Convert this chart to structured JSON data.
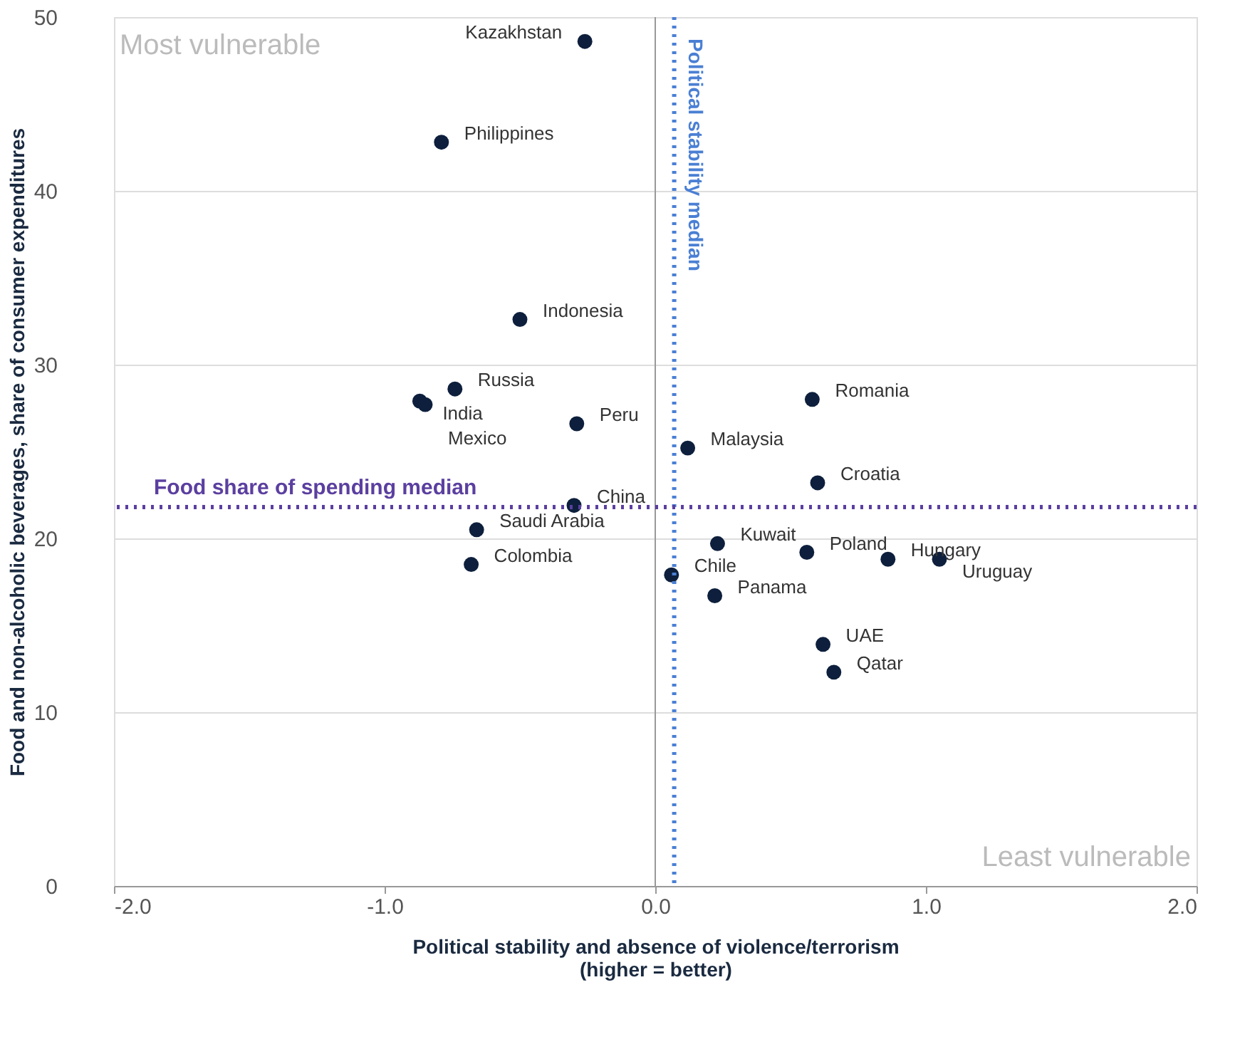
{
  "chart_data": {
    "type": "scatter",
    "xlabel": "Political stability and absence of violence/terrorism\n(higher = better)",
    "ylabel": "Food and non-alcoholic beverages, share of consumer expenditures",
    "x": [
      -0.26,
      -0.79,
      -0.5,
      -0.74,
      -0.87,
      -0.85,
      -0.29,
      0.12,
      0.58,
      0.6,
      -0.3,
      -0.66,
      -0.68,
      0.23,
      0.56,
      0.86,
      1.05,
      0.06,
      0.22,
      0.62,
      0.66
    ],
    "series": [
      {
        "color": "#0d1f3c",
        "values": [
          48.6,
          42.8,
          32.6,
          28.6,
          27.9,
          27.7,
          26.6,
          25.2,
          28.0,
          23.2,
          21.9,
          20.5,
          18.5,
          19.7,
          19.2,
          18.8,
          18.8,
          17.9,
          16.7,
          13.9,
          12.3
        ]
      }
    ],
    "xlim": [
      -2.0,
      2.0
    ],
    "xticks": [
      {
        "value": -2,
        "label": "-2.0"
      },
      {
        "value": -1,
        "label": "-1.0"
      },
      {
        "value": 0,
        "label": "0.0"
      },
      {
        "value": 1,
        "label": "1.0"
      },
      {
        "value": 2,
        "label": "2.0"
      }
    ],
    "ylim": [
      0,
      50
    ],
    "yticks": [
      0,
      10,
      20,
      30,
      40,
      50
    ],
    "grid": "y",
    "marker": "circle",
    "ref_lines": [
      {
        "axis": "x",
        "value": 0,
        "label": null,
        "color": "#999999",
        "line_style": "solid"
      },
      {
        "axis": "x",
        "value": 0.07,
        "label": "Political stability median",
        "color": "#4a7fd4",
        "line_style": "dotted"
      },
      {
        "axis": "y",
        "value": 21.8,
        "label": "Food share of spending median",
        "color": "#5b3fa0",
        "line_style": "dotted"
      }
    ],
    "annotations": [
      "Most vulnerable",
      "Least vulnerable",
      {
        "text": "Kazakhstan",
        "x": -0.26,
        "y": 48.6
      },
      {
        "text": "Philippines",
        "x": -0.79,
        "y": 42.8
      },
      {
        "text": "Indonesia",
        "x": -0.5,
        "y": 32.6
      },
      {
        "text": "Russia",
        "x": -0.74,
        "y": 28.6
      },
      {
        "text": "India",
        "x": -0.87,
        "y": 27.9
      },
      {
        "text": "Mexico",
        "x": -0.85,
        "y": 27.7
      },
      {
        "text": "Peru",
        "x": -0.29,
        "y": 26.6
      },
      {
        "text": "Malaysia",
        "x": 0.12,
        "y": 25.2
      },
      {
        "text": "Romania",
        "x": 0.58,
        "y": 28.0
      },
      {
        "text": "Croatia",
        "x": 0.6,
        "y": 23.2
      },
      {
        "text": "China",
        "x": -0.3,
        "y": 21.9
      },
      {
        "text": "Saudi Arabia",
        "x": -0.66,
        "y": 20.5
      },
      {
        "text": "Colombia",
        "x": -0.68,
        "y": 18.5
      },
      {
        "text": "Kuwait",
        "x": 0.23,
        "y": 19.7
      },
      {
        "text": "Poland",
        "x": 0.56,
        "y": 19.2
      },
      {
        "text": "Hungary",
        "x": 0.86,
        "y": 18.8
      },
      {
        "text": "Uruguay",
        "x": 1.05,
        "y": 18.8
      },
      {
        "text": "Chile",
        "x": 0.06,
        "y": 17.9
      },
      {
        "text": "Panama",
        "x": 0.22,
        "y": 16.7
      },
      {
        "text": "UAE",
        "x": 0.62,
        "y": 13.9
      },
      {
        "text": "Qatar",
        "x": 0.66,
        "y": 12.3
      }
    ]
  }
}
